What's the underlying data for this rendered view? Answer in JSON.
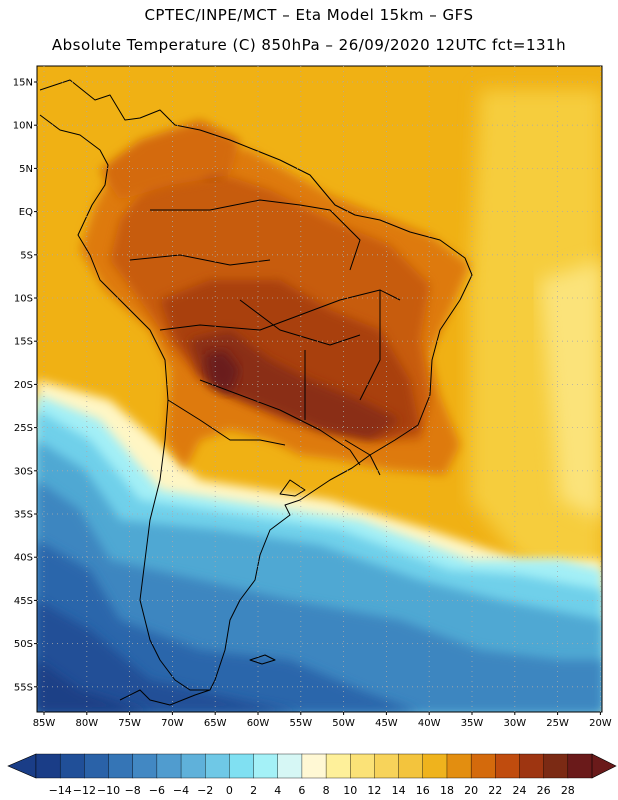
{
  "header": {
    "line1": "CPTEC/INPE/MCT –  Eta Model 15km – GFS",
    "line2": "Absolute Temperature (C) 850hPa – 26/09/2020 12UTC fct=131h"
  },
  "map": {
    "lat_labels": [
      "15N",
      "10N",
      "5N",
      "EQ",
      "5S",
      "10S",
      "15S",
      "20S",
      "25S",
      "30S",
      "35S",
      "40S",
      "45S",
      "50S",
      "55S"
    ],
    "lon_labels": [
      "85W",
      "80W",
      "75W",
      "70W",
      "65W",
      "60W",
      "55W",
      "50W",
      "45W",
      "40W",
      "35W",
      "30W",
      "25W",
      "20W"
    ]
  },
  "colorbar": {
    "labels": [
      "-14",
      "-12",
      "-10",
      "-8",
      "-6",
      "-4",
      "-2",
      "0",
      "2",
      "4",
      "6",
      "8",
      "10",
      "12",
      "14",
      "16",
      "18",
      "20",
      "22",
      "24",
      "26",
      "28"
    ],
    "colors": [
      "#1a3d87",
      "#204f98",
      "#2a62a8",
      "#3575b6",
      "#4288c3",
      "#509ccf",
      "#5fb1da",
      "#6fc8e6",
      "#80e0f2",
      "#a4f1f7",
      "#d6f7f5",
      "#fff8d4",
      "#fef09a",
      "#fbe277",
      "#f7d35a",
      "#f3c43d",
      "#efb31d",
      "#e38e10",
      "#d46a0c",
      "#c04c0e",
      "#9e3511",
      "#7b2a14",
      "#6a1a1a"
    ]
  }
}
